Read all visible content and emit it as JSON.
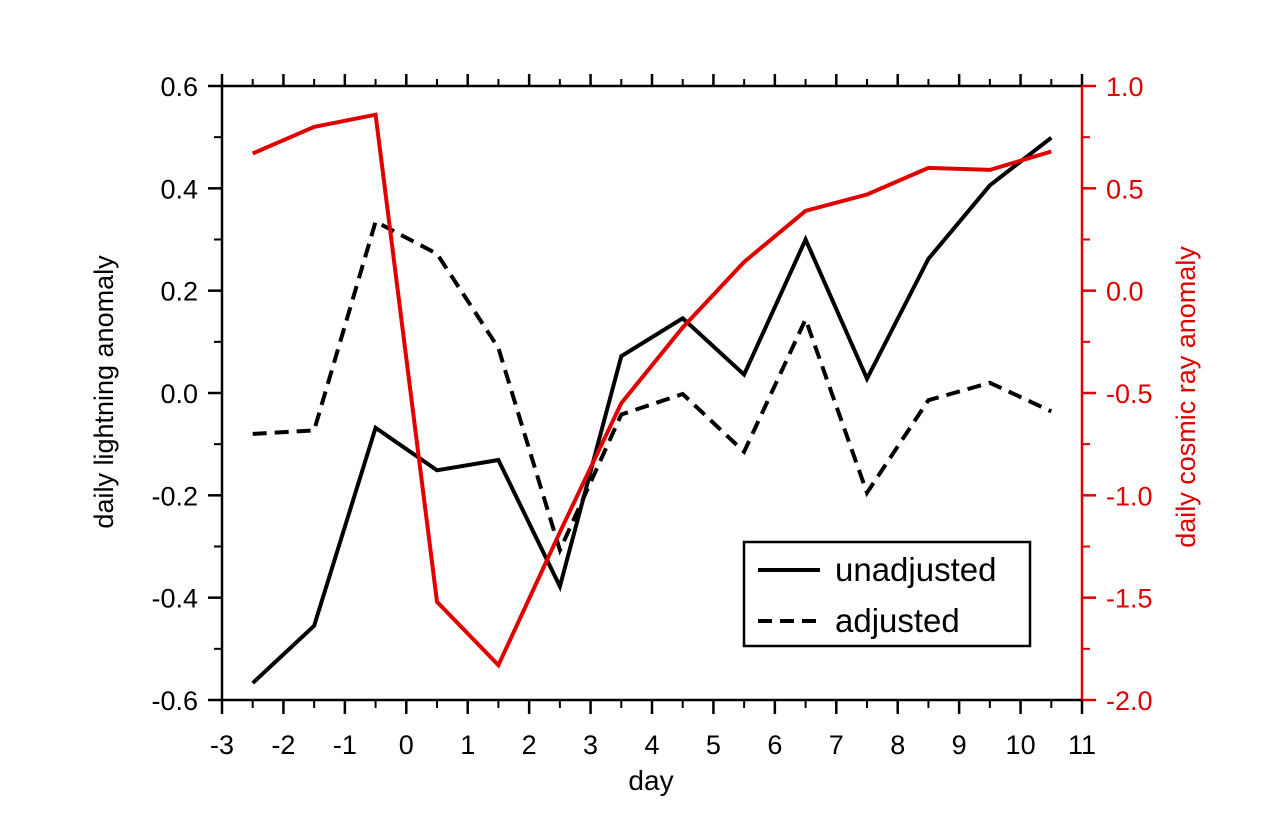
{
  "chart_data": {
    "type": "line",
    "title": "",
    "xlabel": "day",
    "ylabel": "daily lightning anomaly",
    "y2label": "daily cosmic ray anomaly",
    "xlim": [
      -3,
      11
    ],
    "ylim": [
      -0.6,
      0.6
    ],
    "y2lim": [
      -2.0,
      1.0
    ],
    "grid": false,
    "legend_position": "bottom-right",
    "x_ticks": [
      -3,
      -2,
      -1,
      0,
      1,
      2,
      3,
      4,
      5,
      6,
      7,
      8,
      9,
      10,
      11
    ],
    "x_tick_labels": [
      "-3",
      "-2",
      "-1",
      "0",
      "1",
      "2",
      "3",
      "4",
      "5",
      "6",
      "7",
      "8",
      "9",
      "10",
      "11"
    ],
    "y_ticks": [
      -0.6,
      -0.4,
      -0.2,
      0.0,
      0.2,
      0.4,
      0.6
    ],
    "y_tick_labels": [
      "-0.6",
      "-0.4",
      "-0.2",
      "0.0",
      "0.2",
      "0.4",
      "0.6"
    ],
    "y2_ticks": [
      -2.0,
      -1.5,
      -1.0,
      -0.5,
      0.0,
      0.5,
      1.0
    ],
    "y2_tick_labels": [
      "-2.0",
      "-1.5",
      "-1.0",
      "-0.5",
      "0.0",
      "0.5",
      "1.0"
    ],
    "x": [
      -2.5,
      -1.5,
      -0.5,
      0.5,
      1.5,
      2.5,
      3.5,
      4.5,
      5.5,
      6.5,
      7.5,
      8.5,
      9.5,
      10.5
    ],
    "series": [
      {
        "name": "unadjusted",
        "axis": "left",
        "style": "solid",
        "color": "#000000",
        "values": [
          -0.567,
          -0.455,
          -0.068,
          -0.151,
          -0.131,
          -0.378,
          0.072,
          0.146,
          0.036,
          0.3,
          0.028,
          0.262,
          0.406,
          0.499
        ]
      },
      {
        "name": "adjusted",
        "axis": "left",
        "style": "dashed",
        "color": "#000000",
        "values": [
          -0.08,
          -0.073,
          0.335,
          0.272,
          0.088,
          -0.307,
          -0.042,
          -0.002,
          -0.115,
          0.144,
          -0.195,
          -0.014,
          0.02,
          -0.036
        ]
      },
      {
        "name": "",
        "axis": "right",
        "style": "solid",
        "color": "#e00000",
        "values": [
          0.67,
          0.8,
          0.86,
          -1.52,
          -1.83,
          -1.18,
          -0.55,
          -0.18,
          0.14,
          0.39,
          0.47,
          0.6,
          0.59,
          0.68
        ]
      }
    ],
    "legend": {
      "entries": [
        {
          "label": "unadjusted",
          "style": "solid"
        },
        {
          "label": "adjusted",
          "style": "dashed"
        }
      ]
    }
  },
  "colors": {
    "left_axis": "#000000",
    "right_axis": "#e00000",
    "background": "#ffffff"
  }
}
